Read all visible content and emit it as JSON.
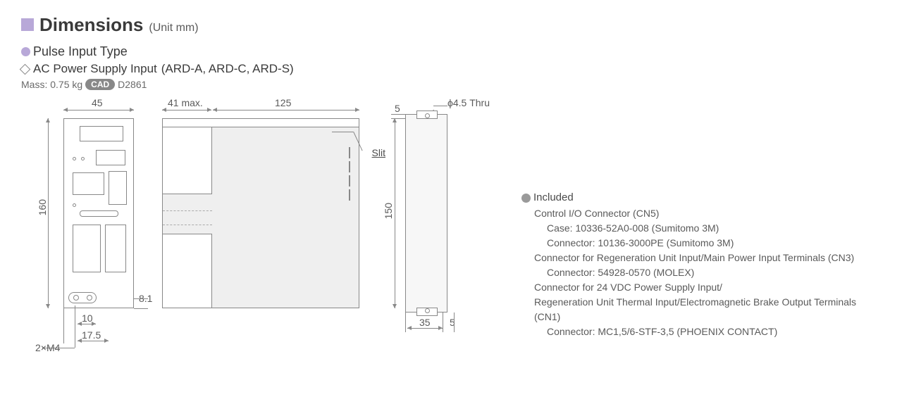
{
  "header": {
    "title": "Dimensions",
    "unit": "(Unit mm)"
  },
  "subtitle": {
    "line1": "Pulse Input Type",
    "line2_label": "AC Power Supply Input",
    "line2_models": "(ARD-A, ARD-C, ARD-S)"
  },
  "mass": {
    "label": "Mass: 0.75 kg",
    "cad_badge": "CAD",
    "cad_code": "D2861"
  },
  "views": {
    "front": {
      "width_mm": 45,
      "height_mm": 160,
      "bottom_offset1_mm": 10,
      "bottom_offset2_mm": 17.5,
      "side_offset_mm": 8.1,
      "screw_label": "2×M4"
    },
    "side": {
      "depth_front_mm": "41 max.",
      "depth_body_mm": 125,
      "slit_label": "Slit"
    },
    "mount": {
      "hole_label": "ϕ4.5 Thru",
      "top_margin_mm": 5,
      "pitch_mm": 150,
      "width_mm": 35,
      "edge_mm": 5
    }
  },
  "included": {
    "heading": "Included",
    "items": [
      {
        "t": "Control I/O Connector (CN5)",
        "i": 1
      },
      {
        "t": "Case: 10336-52A0-008 (Sumitomo 3M)",
        "i": 2
      },
      {
        "t": "Connector: 10136-3000PE (Sumitomo 3M)",
        "i": 2
      },
      {
        "t": "Connector for Regeneration Unit Input/Main Power Input Terminals (CN3)",
        "i": 1
      },
      {
        "t": "Connector: 54928-0570 (MOLEX)",
        "i": 2
      },
      {
        "t": "Connector for 24 VDC Power Supply Input/",
        "i": 1
      },
      {
        "t": "Regeneration Unit Thermal Input/Electromagnetic Brake Output Terminals",
        "i": 1
      },
      {
        "t": "(CN1)",
        "i": 1
      },
      {
        "t": "Connector: MC1,5/6-STF-3,5 (PHOENIX CONTACT)",
        "i": 2
      }
    ]
  },
  "colors": {
    "accent_purple": "#b8a8d8",
    "line": "#888888",
    "fill_gray": "#efefef",
    "text": "#4a4a4a"
  }
}
